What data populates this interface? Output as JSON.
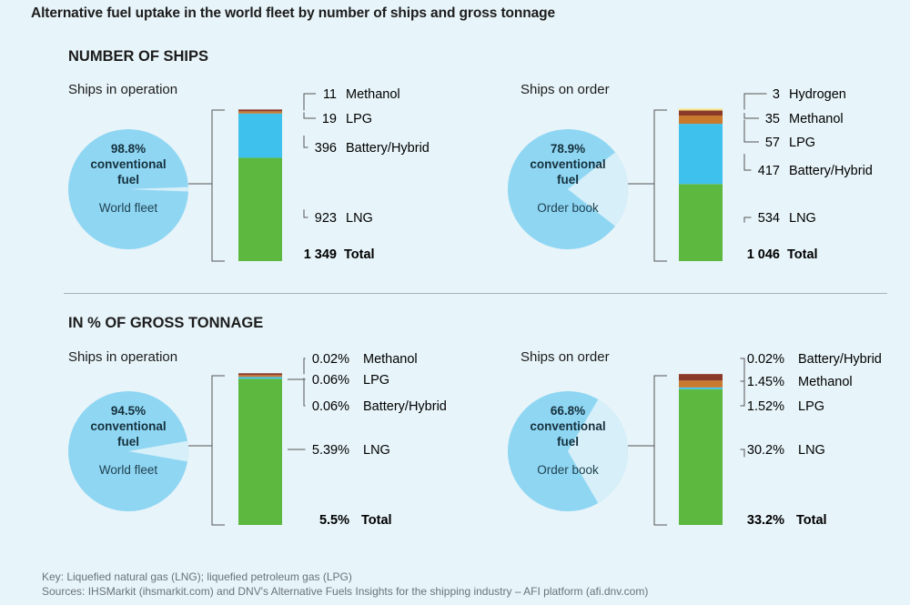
{
  "title": "Alternative fuel uptake in the world fleet by number of ships and gross tonnage",
  "sections": [
    {
      "title": "NUMBER OF SHIPS"
    },
    {
      "title": "IN % OF GROSS TONNAGE"
    }
  ],
  "footnote": {
    "key": "Key: Liquefied natural gas (LNG); liquefied petroleum gas (LPG)",
    "sources": "Sources: IHSMarkit (ihsmarkit.com) and DNV's Alternative Fuels Insights for the shipping industry – AFI platform (afi.dnv.com)"
  },
  "colors": {
    "LNG": "#5cb83f",
    "Battery/Hybrid": "#3fc1ee",
    "LPG": "#c97a2e",
    "Methanol": "#8b3a2a",
    "Hydrogen": "#f6e27a",
    "pie_main": "#8fd6f3",
    "pie_slice": "#d6eff9"
  },
  "chart_data": [
    {
      "type": "bar",
      "panel_title": "Ships in operation",
      "pie": {
        "percent_text": "98.8%",
        "line1": "conventional",
        "line2": "fuel",
        "label": "World fleet",
        "conventional_share": 98.8
      },
      "segments": [
        {
          "name": "LNG",
          "value": 923,
          "label": "923"
        },
        {
          "name": "Battery/Hybrid",
          "value": 396,
          "label": "396"
        },
        {
          "name": "LPG",
          "value": 19,
          "label": "19"
        },
        {
          "name": "Methanol",
          "value": 11,
          "label": "11"
        }
      ],
      "total": {
        "value": 1349,
        "label": "1 349",
        "name": "Total"
      }
    },
    {
      "type": "bar",
      "panel_title": "Ships on order",
      "pie": {
        "percent_text": "78.9%",
        "line1": "conventional",
        "line2": "fuel",
        "label": "Order book",
        "conventional_share": 78.9
      },
      "segments": [
        {
          "name": "LNG",
          "value": 534,
          "label": "534"
        },
        {
          "name": "Battery/Hybrid",
          "value": 417,
          "label": "417"
        },
        {
          "name": "LPG",
          "value": 57,
          "label": "57"
        },
        {
          "name": "Methanol",
          "value": 35,
          "label": "35"
        },
        {
          "name": "Hydrogen",
          "value": 3,
          "label": "3"
        }
      ],
      "total": {
        "value": 1046,
        "label": "1 046",
        "name": "Total"
      }
    },
    {
      "type": "bar",
      "panel_title": "Ships in operation",
      "pie": {
        "percent_text": "94.5%",
        "line1": "conventional",
        "line2": "fuel",
        "label": "World fleet",
        "conventional_share": 94.5
      },
      "segments": [
        {
          "name": "LNG",
          "value": 5.39,
          "label": "5.39%"
        },
        {
          "name": "Battery/Hybrid",
          "value": 0.06,
          "label": "0.06%"
        },
        {
          "name": "LPG",
          "value": 0.06,
          "label": "0.06%"
        },
        {
          "name": "Methanol",
          "value": 0.02,
          "label": "0.02%"
        }
      ],
      "total": {
        "value": 5.5,
        "label": "5.5%",
        "name": "Total"
      }
    },
    {
      "type": "bar",
      "panel_title": "Ships on order",
      "pie": {
        "percent_text": "66.8%",
        "line1": "conventional",
        "line2": "fuel",
        "label": "Order book",
        "conventional_share": 66.8
      },
      "segments": [
        {
          "name": "LNG",
          "value": 30.2,
          "label": "30.2%"
        },
        {
          "name": "LPG",
          "value": 1.52,
          "label": "1.52%"
        },
        {
          "name": "Methanol",
          "value": 1.45,
          "label": "1.45%"
        },
        {
          "name": "Battery/Hybrid",
          "value": 0.02,
          "label": "0.02%"
        }
      ],
      "total": {
        "value": 33.2,
        "label": "33.2%",
        "name": "Total"
      }
    }
  ]
}
